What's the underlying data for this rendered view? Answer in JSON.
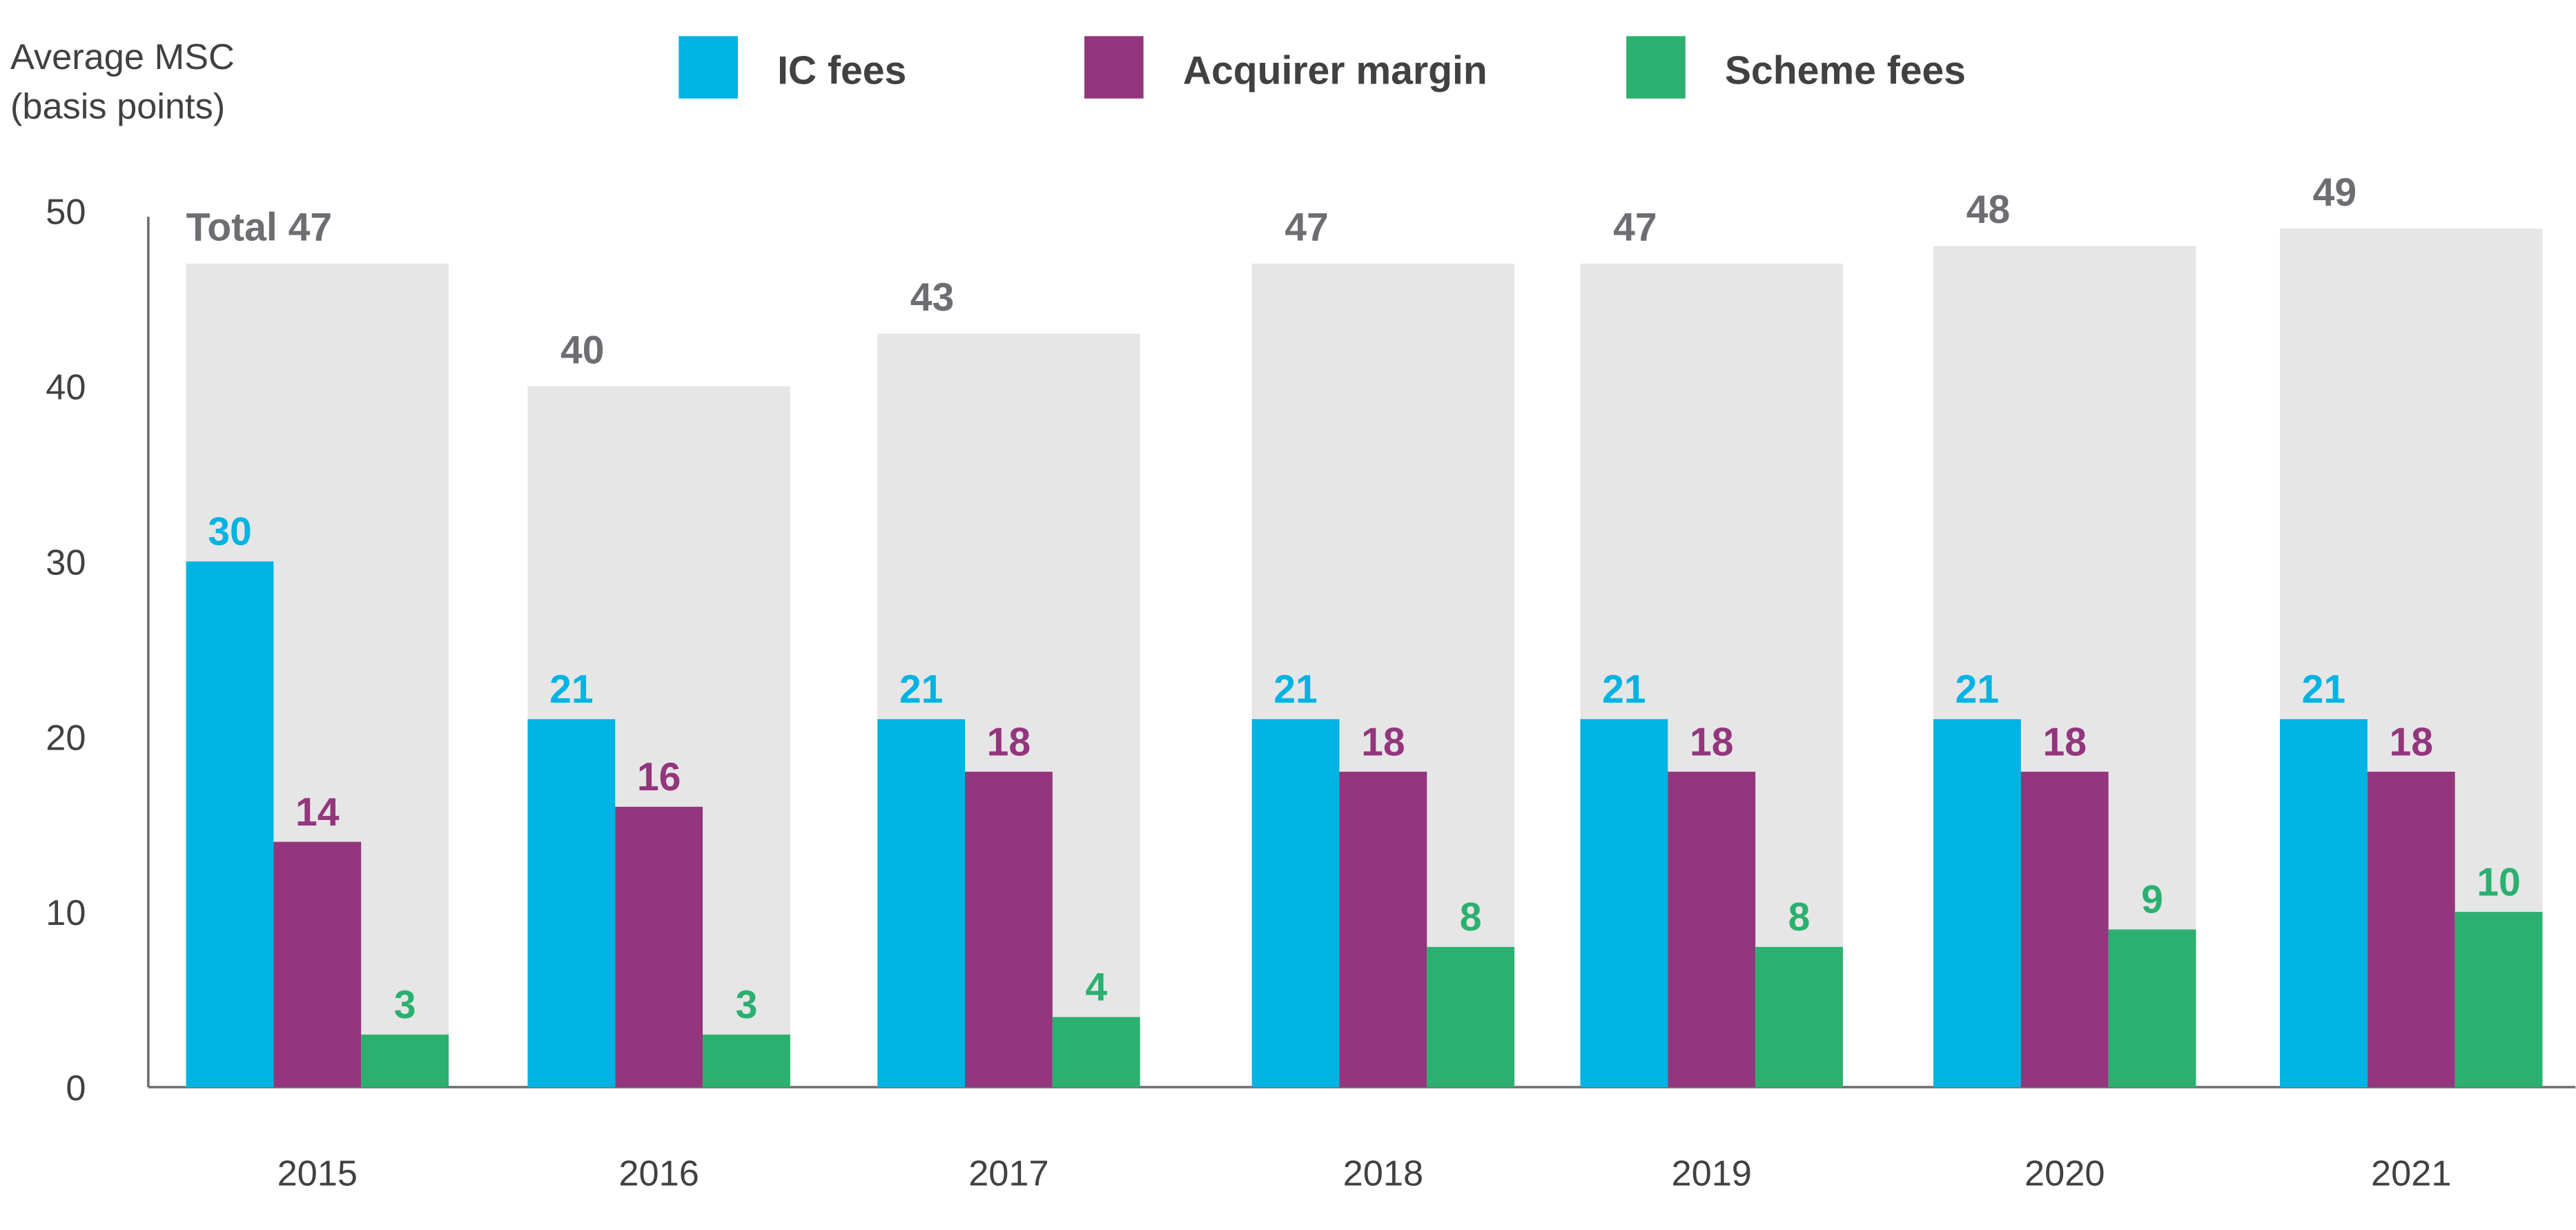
{
  "chart_data": {
    "type": "bar",
    "title": "",
    "ylabel": [
      "Average MSC",
      "(basis points)"
    ],
    "xlabel": "",
    "ylim": [
      0,
      50
    ],
    "yticks": [
      0,
      10,
      20,
      30,
      40,
      50
    ],
    "categories": [
      "2015",
      "2016",
      "2017",
      "2018",
      "2019",
      "2020",
      "2021"
    ],
    "series": [
      {
        "name": "IC fees",
        "color": "#00b3e3",
        "values": [
          30,
          21,
          21,
          21,
          21,
          21,
          21
        ]
      },
      {
        "name": "Acquirer margin",
        "color": "#93367d",
        "values": [
          14,
          16,
          18,
          18,
          18,
          18,
          18
        ]
      },
      {
        "name": "Scheme fees",
        "color": "#2bb070",
        "values": [
          3,
          3,
          4,
          8,
          8,
          9,
          10
        ]
      }
    ],
    "totals": {
      "color": "#e6e6e6",
      "prefix": "Total",
      "values": [
        47,
        40,
        43,
        47,
        47,
        48,
        49
      ]
    },
    "legend_position": "top",
    "grid": false
  }
}
